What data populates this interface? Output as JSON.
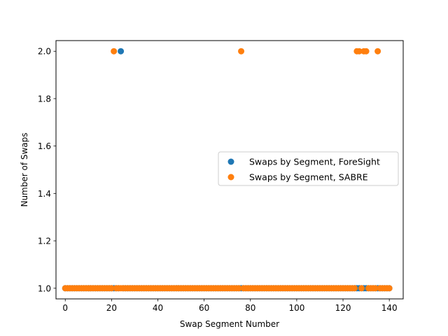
{
  "chart_data": {
    "type": "scatter",
    "title": "",
    "xlabel": "Swap Segment Number",
    "ylabel": "Number of Swaps",
    "xlim": [
      -4,
      146
    ],
    "ylim": [
      0.955,
      2.045
    ],
    "xticks": [
      0,
      20,
      40,
      60,
      80,
      100,
      120,
      140
    ],
    "yticks": [
      1.0,
      1.2,
      1.4,
      1.6,
      1.8,
      2.0
    ],
    "ytick_labels": [
      "1.0",
      "1.2",
      "1.4",
      "1.6",
      "1.8",
      "2.0"
    ],
    "grid": false,
    "legend_position": "center-right",
    "series": [
      {
        "name": "Swaps by Segment, ForeSight",
        "color": "#1f77b4",
        "x": [
          0,
          1,
          2,
          3,
          4,
          5,
          6,
          7,
          8,
          9,
          10,
          11,
          12,
          13,
          14,
          15,
          16,
          17,
          18,
          19,
          20,
          21,
          22,
          23,
          24,
          25,
          26,
          27,
          28,
          29,
          30,
          31,
          32,
          33,
          34,
          35,
          36,
          37,
          38,
          39,
          40,
          41,
          42,
          43,
          44,
          45,
          46,
          47,
          48,
          49,
          50,
          51,
          52,
          53,
          54,
          55,
          56,
          57,
          58,
          59,
          60,
          61,
          62,
          63,
          64,
          65,
          66,
          67,
          68,
          69,
          70,
          71,
          72,
          73,
          74,
          75,
          76,
          77,
          78,
          79,
          80,
          81,
          82,
          83,
          84,
          85,
          86,
          87,
          88,
          89,
          90,
          91,
          92,
          93,
          94,
          95,
          96,
          97,
          98,
          99,
          100,
          101,
          102,
          103,
          104,
          105,
          106,
          107,
          108,
          109,
          110,
          111,
          112,
          113,
          114,
          115,
          116,
          117,
          118,
          119,
          120,
          121,
          122,
          123,
          124,
          125,
          126,
          127,
          128,
          129,
          130,
          131,
          132,
          133,
          134,
          135,
          136,
          137,
          138,
          139,
          140
        ],
        "y": [
          1,
          1,
          1,
          1,
          1,
          1,
          1,
          1,
          1,
          1,
          1,
          1,
          1,
          1,
          1,
          1,
          1,
          1,
          1,
          1,
          1,
          1,
          1,
          1,
          2,
          1,
          1,
          1,
          1,
          1,
          1,
          1,
          1,
          1,
          1,
          1,
          1,
          1,
          1,
          1,
          1,
          1,
          1,
          1,
          1,
          1,
          1,
          1,
          1,
          1,
          1,
          1,
          1,
          1,
          1,
          1,
          1,
          1,
          1,
          1,
          1,
          1,
          1,
          1,
          1,
          1,
          1,
          1,
          1,
          1,
          1,
          1,
          1,
          1,
          1,
          1,
          1,
          1,
          1,
          1,
          1,
          1,
          1,
          1,
          1,
          1,
          1,
          1,
          1,
          1,
          1,
          1,
          1,
          1,
          1,
          1,
          1,
          1,
          1,
          1,
          1,
          1,
          1,
          1,
          1,
          1,
          1,
          1,
          1,
          1,
          1,
          1,
          1,
          1,
          1,
          1,
          1,
          1,
          1,
          1,
          1,
          1,
          1,
          1,
          1,
          1,
          1,
          1,
          1,
          1,
          1,
          1,
          1,
          1,
          1,
          1,
          1,
          1,
          1,
          1,
          1
        ]
      },
      {
        "name": "Swaps by Segment, SABRE",
        "color": "#ff7f0e",
        "x": [
          0,
          1,
          2,
          3,
          4,
          5,
          6,
          7,
          8,
          9,
          10,
          11,
          12,
          13,
          14,
          15,
          16,
          17,
          18,
          19,
          20,
          21,
          22,
          23,
          24,
          25,
          26,
          27,
          28,
          29,
          30,
          31,
          32,
          33,
          34,
          35,
          36,
          37,
          38,
          39,
          40,
          41,
          42,
          43,
          44,
          45,
          46,
          47,
          48,
          49,
          50,
          51,
          52,
          53,
          54,
          55,
          56,
          57,
          58,
          59,
          60,
          61,
          62,
          63,
          64,
          65,
          66,
          67,
          68,
          69,
          70,
          71,
          72,
          73,
          74,
          75,
          76,
          77,
          78,
          79,
          80,
          81,
          82,
          83,
          84,
          85,
          86,
          87,
          88,
          89,
          90,
          91,
          92,
          93,
          94,
          95,
          96,
          97,
          98,
          99,
          100,
          101,
          102,
          103,
          104,
          105,
          106,
          107,
          108,
          109,
          110,
          111,
          112,
          113,
          114,
          115,
          116,
          117,
          118,
          119,
          120,
          121,
          122,
          123,
          124,
          125,
          126,
          127,
          128,
          129,
          130,
          131,
          132,
          133,
          134,
          135,
          136,
          137,
          138,
          139,
          140
        ],
        "y": [
          1,
          1,
          1,
          1,
          1,
          1,
          1,
          1,
          1,
          1,
          1,
          1,
          1,
          1,
          1,
          1,
          1,
          1,
          1,
          1,
          1,
          2,
          1,
          1,
          1,
          1,
          1,
          1,
          1,
          1,
          1,
          1,
          1,
          1,
          1,
          1,
          1,
          1,
          1,
          1,
          1,
          1,
          1,
          1,
          1,
          1,
          1,
          1,
          1,
          1,
          1,
          1,
          1,
          1,
          1,
          1,
          1,
          1,
          1,
          1,
          1,
          1,
          1,
          1,
          1,
          1,
          1,
          1,
          1,
          1,
          1,
          1,
          1,
          1,
          1,
          1,
          2,
          1,
          1,
          1,
          1,
          1,
          1,
          1,
          1,
          1,
          1,
          1,
          1,
          1,
          1,
          1,
          1,
          1,
          1,
          1,
          1,
          1,
          1,
          1,
          1,
          1,
          1,
          1,
          1,
          1,
          1,
          1,
          1,
          1,
          1,
          1,
          1,
          1,
          1,
          1,
          1,
          1,
          1,
          1,
          1,
          1,
          1,
          1,
          1,
          1,
          2,
          2,
          1,
          2,
          2,
          1,
          1,
          1,
          1,
          2,
          1,
          1,
          1,
          1,
          1
        ]
      }
    ]
  }
}
